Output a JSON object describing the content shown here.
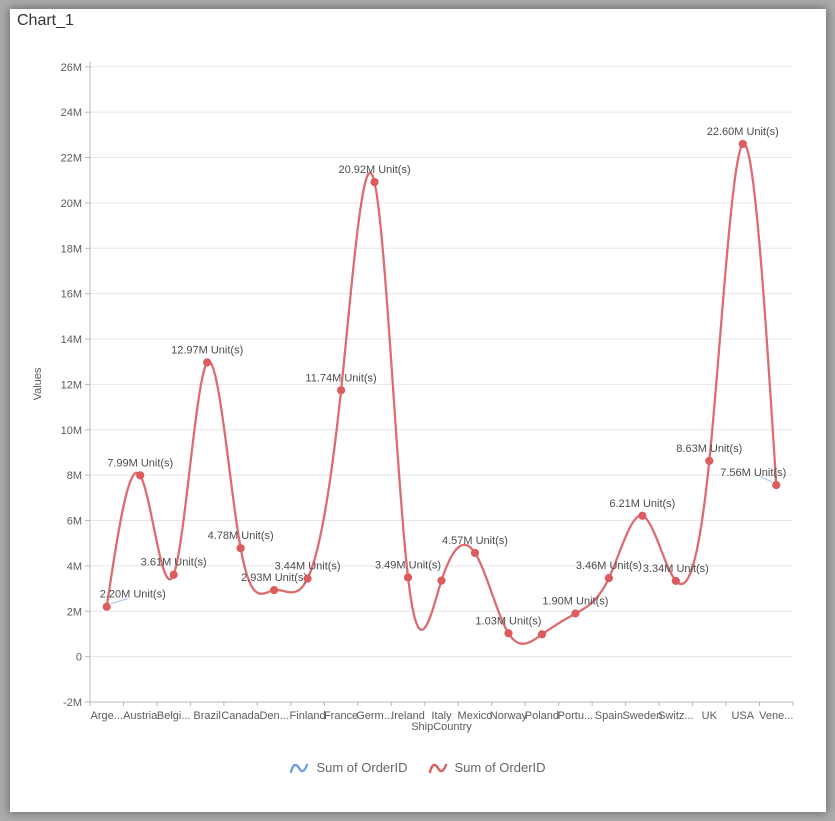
{
  "header": {
    "title": "Chart_1"
  },
  "colors": {
    "page_background": "#acacac",
    "card_background": "#ffffff",
    "series_blue": "#6f9ee8",
    "series_red_line": "#e16a6c",
    "series_red_marker": "#dc5b5d",
    "gridline": "#e7e7e7",
    "axis_line": "#b8b8b8",
    "tick_text": "#5b5b5b",
    "data_label_text": "#4c4c4c",
    "leader_line": "#a9c6f0",
    "legend_text": "#666666"
  },
  "legend": {
    "position": "bottom",
    "items": [
      {
        "label": "Sum of OrderID",
        "color": "#6f9ee8",
        "icon": "wave-icon"
      },
      {
        "label": "Sum of OrderID",
        "color": "#dc5b5d",
        "icon": "wave-icon"
      }
    ]
  },
  "chart_data": {
    "type": "line",
    "subtype": "natural-spline-with-markers",
    "title": "Chart_1",
    "xlabel": "ShipCountry",
    "ylabel": "Values",
    "grid": "horizontal",
    "legend_position": "bottom",
    "ylim_millions": [
      -2,
      26
    ],
    "y_tick_step_millions": 2,
    "y_ticks": [
      "-2M",
      "0",
      "2M",
      "4M",
      "6M",
      "8M",
      "10M",
      "12M",
      "14M",
      "16M",
      "18M",
      "20M",
      "22M",
      "24M",
      "26M"
    ],
    "categories": [
      "Arge...",
      "Austria",
      "Belgi...",
      "Brazil",
      "Canada",
      "Den...",
      "Finland",
      "France",
      "Germ...",
      "Ireland",
      "Italy",
      "Mexico",
      "Norway",
      "Poland",
      "Portu...",
      "Spain",
      "Sweden",
      "Switz...",
      "UK",
      "USA",
      "Vene..."
    ],
    "series": [
      {
        "name": "Sum of OrderID",
        "color": "#6f9ee8",
        "values_millions": [
          2.2,
          7.99,
          3.61,
          12.97,
          4.78,
          2.93,
          3.44,
          11.74,
          20.92,
          3.49,
          3.35,
          4.57,
          1.03,
          0.98,
          1.9,
          3.46,
          6.21,
          3.34,
          8.63,
          22.6,
          7.56
        ]
      },
      {
        "name": "Sum of OrderID",
        "color": "#dc5b5d",
        "line_color": "#e16a6c",
        "values_millions": [
          2.2,
          7.99,
          3.61,
          12.97,
          4.78,
          2.93,
          3.44,
          11.74,
          20.92,
          3.49,
          3.35,
          4.57,
          1.03,
          0.98,
          1.9,
          3.46,
          6.21,
          3.34,
          8.63,
          22.6,
          7.56
        ],
        "point_labels": [
          "2.20M Unit(s)",
          "7.99M Unit(s)",
          "3.61M Unit(s)",
          "12.97M Unit(s)",
          "4.78M Unit(s)",
          "2.93M Unit(s)",
          "3.44M Unit(s)",
          "11.74M Unit(s)",
          "20.92M Unit(s)",
          "3.49M Unit(s)",
          null,
          "4.57M Unit(s)",
          "1.03M Unit(s)",
          null,
          "1.90M Unit(s)",
          "3.46M Unit(s)",
          "6.21M Unit(s)",
          "3.34M Unit(s)",
          "8.63M Unit(s)",
          "22.60M Unit(s)",
          "7.56M Unit(s)"
        ]
      }
    ]
  }
}
